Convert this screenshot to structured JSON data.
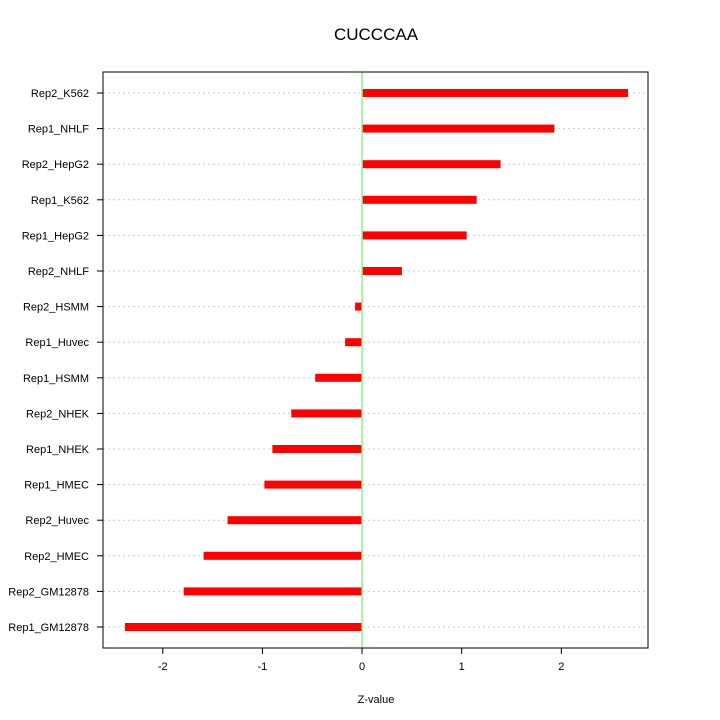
{
  "chart_data": {
    "type": "bar",
    "orientation": "horizontal",
    "title": "CUCCCAA",
    "xlabel": "Z-value",
    "ylabel": "",
    "xlim": [
      -2.6,
      2.87
    ],
    "xticks": [
      -2,
      -1,
      0,
      1,
      2
    ],
    "xtick_labels": [
      "-2",
      "-1",
      "0",
      "1",
      "2"
    ],
    "grid": true,
    "zero_line": true,
    "colors": {
      "bar": "#ff0000",
      "zero_line": "#90ee90",
      "grid": "#cccccc"
    },
    "categories": [
      "Rep2_K562",
      "Rep1_NHLF",
      "Rep2_HepG2",
      "Rep1_K562",
      "Rep1_HepG2",
      "Rep2_NHLF",
      "Rep2_HSMM",
      "Rep1_Huvec",
      "Rep1_HSMM",
      "Rep2_NHEK",
      "Rep1_NHEK",
      "Rep1_HMEC",
      "Rep2_Huvec",
      "Rep2_HMEC",
      "Rep2_GM12878",
      "Rep1_GM12878"
    ],
    "values": [
      2.67,
      1.93,
      1.39,
      1.15,
      1.05,
      0.4,
      -0.07,
      -0.17,
      -0.47,
      -0.71,
      -0.9,
      -0.98,
      -1.35,
      -1.59,
      -1.79,
      -2.38
    ]
  }
}
